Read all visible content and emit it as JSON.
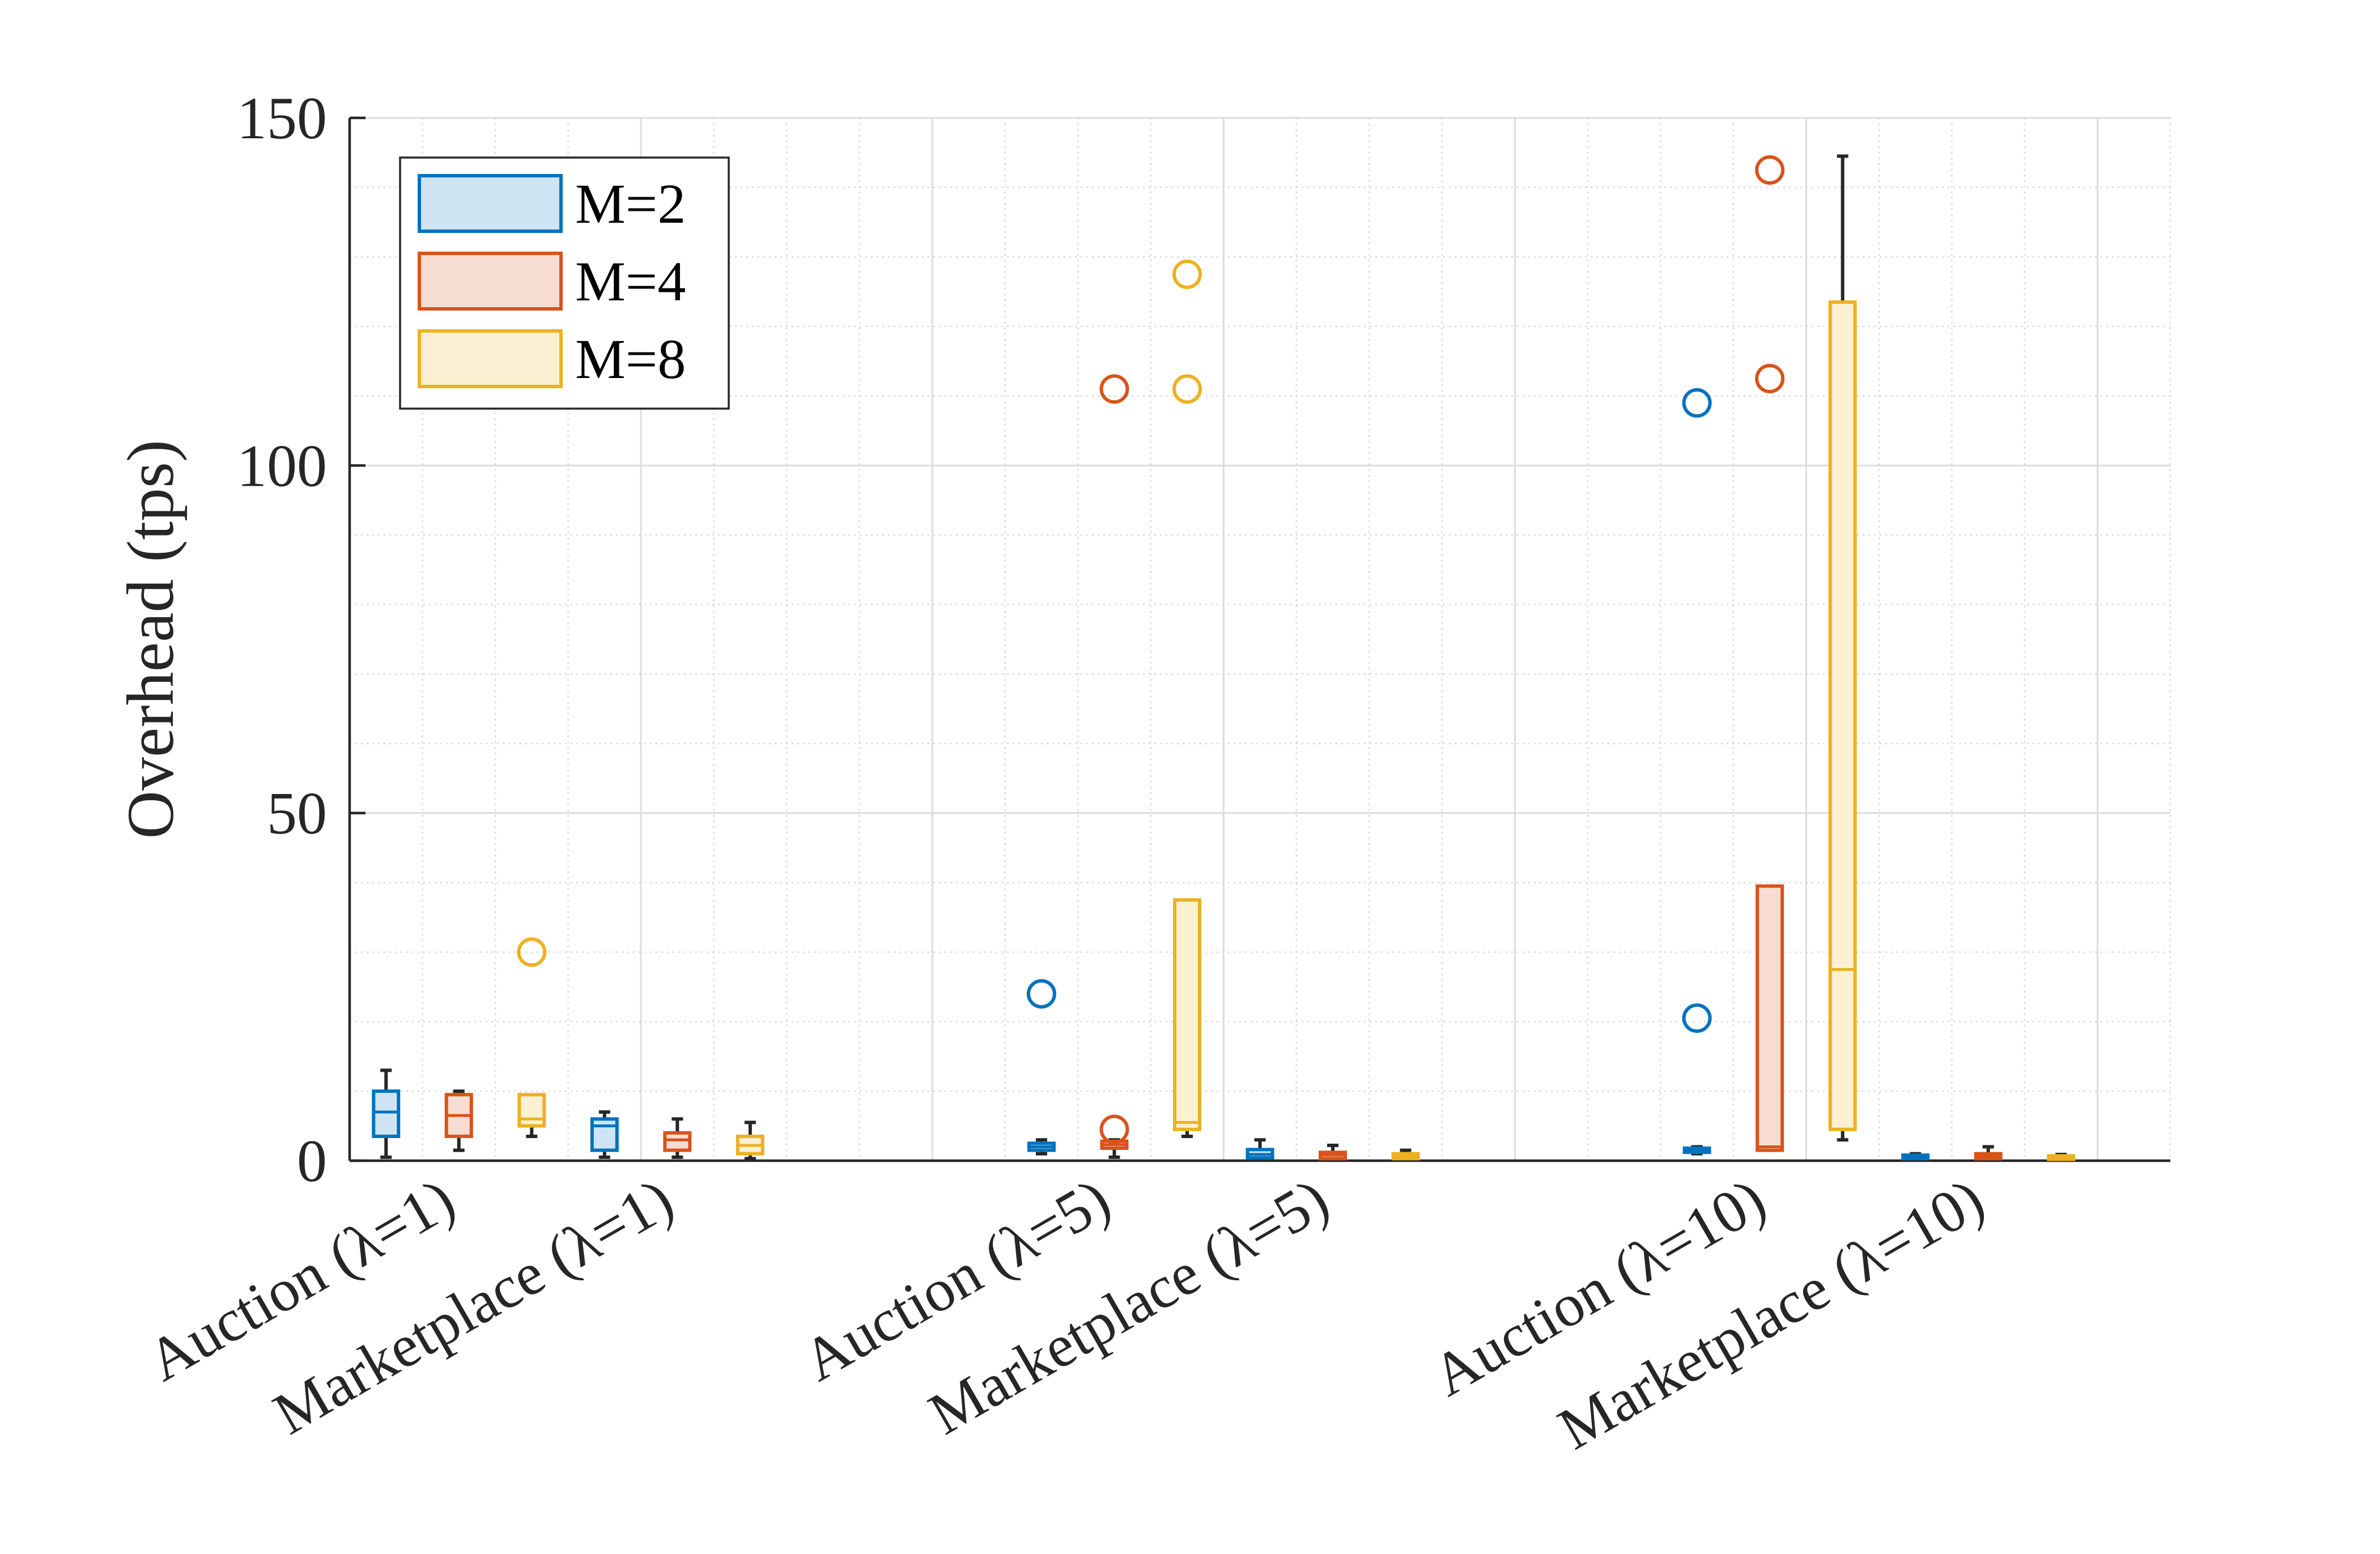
{
  "chart_data": {
    "type": "box",
    "title": "",
    "xlabel": "",
    "ylabel": "Overhead (tps)",
    "ylim": [
      0,
      150
    ],
    "yticks": [
      0,
      50,
      100,
      150
    ],
    "grid": true,
    "minor_grid": true,
    "legend": {
      "placement": "top-left"
    },
    "groups": [
      {
        "labels": [
          "Auction (λ=1)",
          "Marketplace (λ=1)"
        ]
      },
      {
        "labels": [
          "Auction (λ=5)",
          "Marketplace (λ=5)"
        ]
      },
      {
        "labels": [
          "Auction (λ=10)",
          "Marketplace (λ=10)"
        ]
      }
    ],
    "series": [
      {
        "name": "M=2",
        "color": "#0072BD",
        "fill": "#CFE4F2"
      },
      {
        "name": "M=4",
        "color": "#D95319",
        "fill": "#F7DCD1"
      },
      {
        "name": "M=8",
        "color": "#EDB120",
        "fill": "#FCF0D2"
      }
    ],
    "boxes": [
      {
        "group": 0,
        "scenario": "Auction",
        "series": 0,
        "whisker_low": 0.5,
        "q1": 3.5,
        "median": 7,
        "q3": 10,
        "whisker_high": 13,
        "outliers": []
      },
      {
        "group": 0,
        "scenario": "Auction",
        "series": 1,
        "whisker_low": 1.5,
        "q1": 3.5,
        "median": 6.5,
        "q3": 9.5,
        "whisker_high": 10,
        "outliers": []
      },
      {
        "group": 0,
        "scenario": "Auction",
        "series": 2,
        "whisker_low": 3.5,
        "q1": 5,
        "median": 6,
        "q3": 9.5,
        "whisker_high": 9.5,
        "outliers": [
          30
        ]
      },
      {
        "group": 0,
        "scenario": "Marketplace",
        "series": 0,
        "whisker_low": 0.5,
        "q1": 1.5,
        "median": 5,
        "q3": 6,
        "whisker_high": 7,
        "outliers": []
      },
      {
        "group": 0,
        "scenario": "Marketplace",
        "series": 1,
        "whisker_low": 0.5,
        "q1": 1.5,
        "median": 3,
        "q3": 4,
        "whisker_high": 6,
        "outliers": []
      },
      {
        "group": 0,
        "scenario": "Marketplace",
        "series": 2,
        "whisker_low": 0.3,
        "q1": 1,
        "median": 2.2,
        "q3": 3.5,
        "whisker_high": 5.5,
        "outliers": []
      },
      {
        "group": 1,
        "scenario": "Auction",
        "series": 0,
        "whisker_low": 1,
        "q1": 1.5,
        "median": 2,
        "q3": 2.5,
        "whisker_high": 3,
        "outliers": [
          24
        ]
      },
      {
        "group": 1,
        "scenario": "Auction",
        "series": 1,
        "whisker_low": 0.5,
        "q1": 1.8,
        "median": 2.3,
        "q3": 2.8,
        "whisker_high": 3,
        "outliers": [
          4.5,
          111
        ]
      },
      {
        "group": 1,
        "scenario": "Auction",
        "series": 2,
        "whisker_low": 3.5,
        "q1": 4.5,
        "median": 5.5,
        "q3": 37.5,
        "whisker_high": 37.5,
        "outliers": [
          111,
          127.5
        ]
      },
      {
        "group": 1,
        "scenario": "Marketplace",
        "series": 0,
        "whisker_low": 0.3,
        "q1": 0.4,
        "median": 0.9,
        "q3": 1.6,
        "whisker_high": 3,
        "outliers": []
      },
      {
        "group": 1,
        "scenario": "Marketplace",
        "series": 1,
        "whisker_low": 0.2,
        "q1": 0.3,
        "median": 0.8,
        "q3": 1.2,
        "whisker_high": 2.2,
        "outliers": []
      },
      {
        "group": 1,
        "scenario": "Marketplace",
        "series": 2,
        "whisker_low": 0.2,
        "q1": 0.3,
        "median": 0.6,
        "q3": 1,
        "whisker_high": 1.5,
        "outliers": []
      },
      {
        "group": 2,
        "scenario": "Auction",
        "series": 0,
        "whisker_low": 1,
        "q1": 1.2,
        "median": 1.5,
        "q3": 1.8,
        "whisker_high": 2,
        "outliers": [
          20.5,
          109
        ]
      },
      {
        "group": 2,
        "scenario": "Auction",
        "series": 1,
        "whisker_low": 1.5,
        "q1": 1.5,
        "median": 2,
        "q3": 39.5,
        "whisker_high": 39.5,
        "outliers": [
          112.5,
          142.5
        ]
      },
      {
        "group": 2,
        "scenario": "Auction",
        "series": 2,
        "whisker_low": 3,
        "q1": 4.5,
        "median": 27.5,
        "q3": 123.5,
        "whisker_high": 144.5,
        "outliers": []
      },
      {
        "group": 2,
        "scenario": "Marketplace",
        "series": 0,
        "whisker_low": 0.2,
        "q1": 0.3,
        "median": 0.5,
        "q3": 0.8,
        "whisker_high": 1,
        "outliers": []
      },
      {
        "group": 2,
        "scenario": "Marketplace",
        "series": 1,
        "whisker_low": 0.2,
        "q1": 0.3,
        "median": 0.6,
        "q3": 1,
        "whisker_high": 2,
        "outliers": []
      },
      {
        "group": 2,
        "scenario": "Marketplace",
        "series": 2,
        "whisker_low": 0.1,
        "q1": 0.2,
        "median": 0.4,
        "q3": 0.7,
        "whisker_high": 0.9,
        "outliers": []
      }
    ]
  }
}
